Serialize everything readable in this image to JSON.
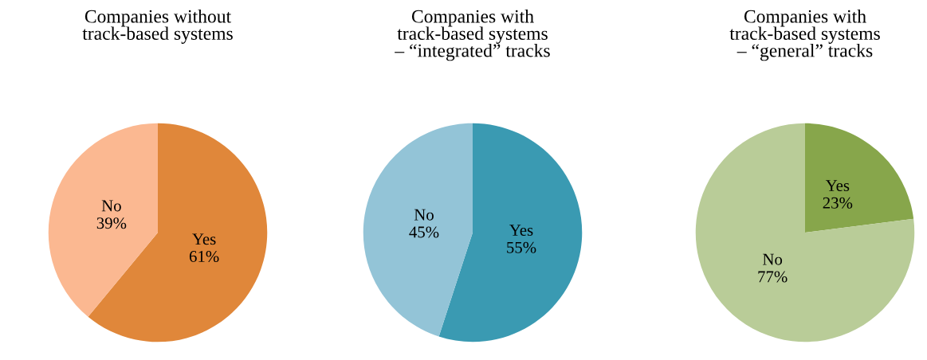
{
  "chart_data": [
    {
      "type": "pie",
      "title": "Companies without\ntrack-based systems",
      "categories": [
        "Yes",
        "No"
      ],
      "values": [
        61,
        39
      ],
      "colors": [
        "#e0873a",
        "#fbb891"
      ],
      "value_labels": [
        "61%",
        "39%"
      ]
    },
    {
      "type": "pie",
      "title": "Companies with\ntrack-based systems\n– “integrated” tracks",
      "categories": [
        "Yes",
        "No"
      ],
      "values": [
        55,
        45
      ],
      "colors": [
        "#3a9ab2",
        "#93c4d7"
      ],
      "value_labels": [
        "55%",
        "45%"
      ]
    },
    {
      "type": "pie",
      "title": "Companies with\ntrack-based systems\n– “general” tracks",
      "categories": [
        "Yes",
        "No"
      ],
      "values": [
        23,
        77
      ],
      "colors": [
        "#87a64b",
        "#b9cc98"
      ],
      "value_labels": [
        "23%",
        "77%"
      ]
    }
  ]
}
